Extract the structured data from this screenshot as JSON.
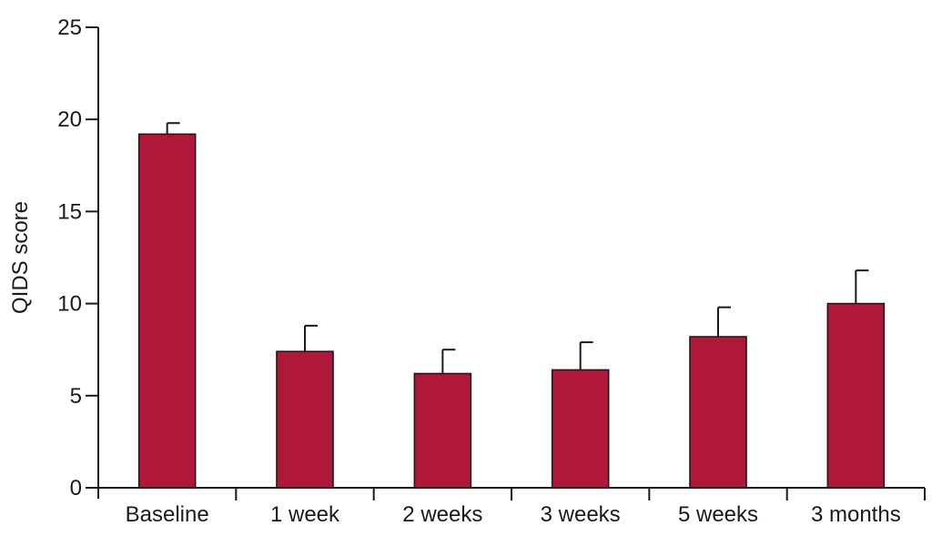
{
  "chart_data": {
    "type": "bar",
    "ylabel": "QIDS score",
    "xlabel": "",
    "ylim": [
      0,
      25
    ],
    "yticks": [
      0,
      5,
      10,
      15,
      20,
      25
    ],
    "categories": [
      "Baseline",
      "1 week",
      "2 weeks",
      "3 weeks",
      "5 weeks",
      "3 months"
    ],
    "values": [
      19.2,
      7.4,
      6.2,
      6.4,
      8.2,
      10.0
    ],
    "error_upper": [
      0.6,
      1.4,
      1.3,
      1.5,
      1.6,
      1.8
    ],
    "bar_color": "#b0183a",
    "grid": false,
    "legend": "none"
  }
}
